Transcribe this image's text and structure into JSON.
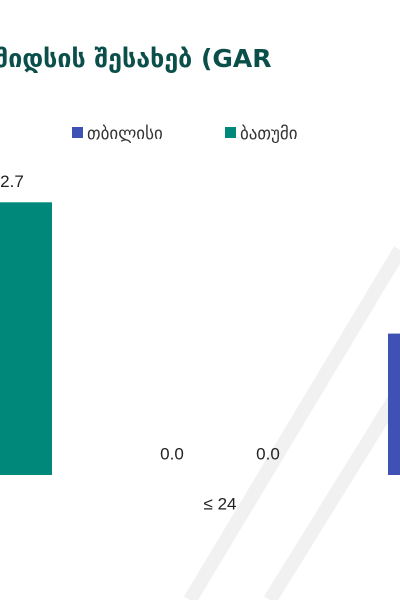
{
  "chart_data": {
    "type": "bar",
    "title": "მიდსის შესახებ (GAR",
    "categories": [
      null,
      "≤ 24",
      null
    ],
    "series": [
      {
        "name": "თბილისი",
        "color": "#3f51b5",
        "values": [
          null,
          0.0,
          1.4
        ],
        "value_labels": [
          null,
          "0.0",
          null
        ]
      },
      {
        "name": "ბათუმი",
        "color": "#00897b",
        "values": [
          2.7,
          0.0,
          null
        ],
        "value_labels": [
          "2.7",
          "0.0",
          null
        ]
      }
    ]
  }
}
